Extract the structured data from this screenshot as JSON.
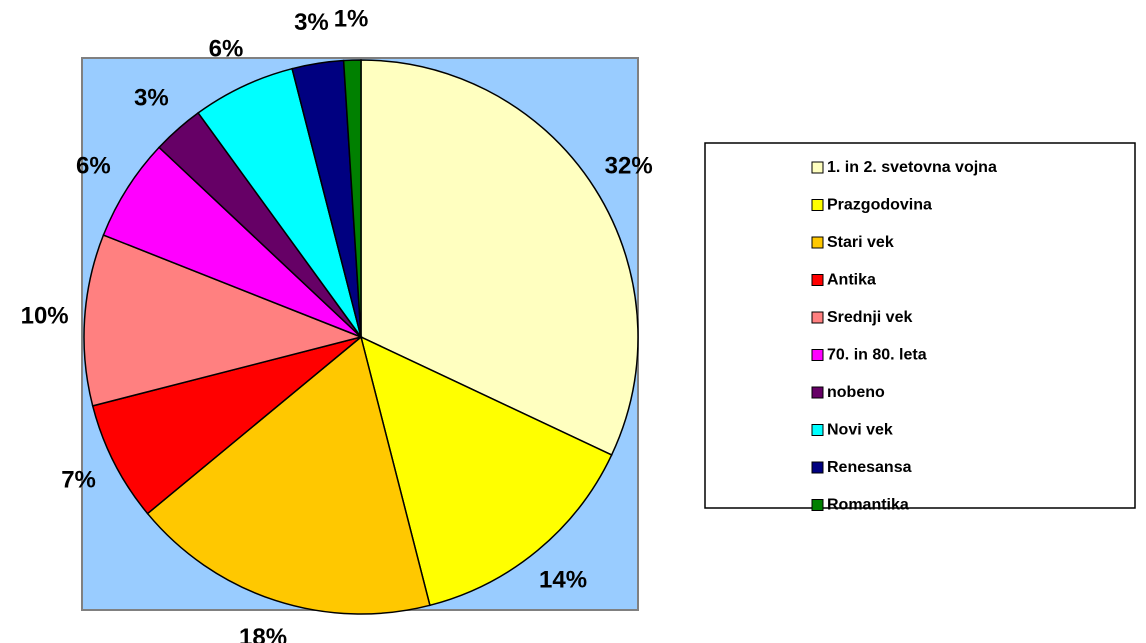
{
  "chart_data": {
    "type": "pie",
    "categories": [
      "1. in 2. svetovna vojna",
      "Prazgodovina",
      "Stari vek",
      "Antika",
      "Srednji vek",
      "70. in 80. leta",
      "nobeno",
      "Novi vek",
      "Renesansa",
      "Romantika"
    ],
    "values": [
      32,
      14,
      18,
      7,
      10,
      6,
      3,
      6,
      3,
      1
    ],
    "value_labels": [
      "32%",
      "14%",
      "18%",
      "7%",
      "10%",
      "6%",
      "3%",
      "6%",
      "3%",
      "1%"
    ],
    "colors": [
      "#ffffc0",
      "#ffff00",
      "#ffc800",
      "#ff0000",
      "#ff8080",
      "#ff00ff",
      "#660066",
      "#00ffff",
      "#000080",
      "#008000"
    ],
    "legend": "right"
  }
}
